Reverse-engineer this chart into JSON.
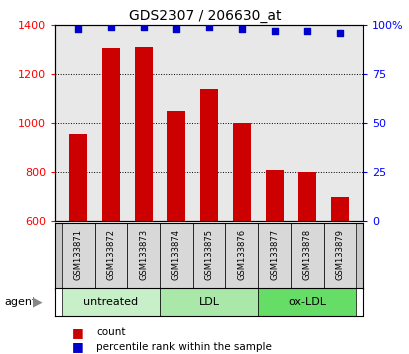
{
  "title": "GDS2307 / 206630_at",
  "samples": [
    "GSM133871",
    "GSM133872",
    "GSM133873",
    "GSM133874",
    "GSM133875",
    "GSM133876",
    "GSM133877",
    "GSM133878",
    "GSM133879"
  ],
  "counts": [
    955,
    1305,
    1310,
    1050,
    1140,
    1000,
    810,
    800,
    700
  ],
  "percentiles": [
    98,
    99,
    99,
    98,
    99,
    98,
    97,
    97,
    96
  ],
  "groups": [
    {
      "label": "untreated",
      "start": 0,
      "end": 3,
      "color": "#c8f0c8"
    },
    {
      "label": "LDL",
      "start": 3,
      "end": 6,
      "color": "#aae8aa"
    },
    {
      "label": "ox-LDL",
      "start": 6,
      "end": 9,
      "color": "#66dd66"
    }
  ],
  "ylim_left": [
    600,
    1400
  ],
  "ylim_right": [
    0,
    100
  ],
  "yticks_left": [
    600,
    800,
    1000,
    1200,
    1400
  ],
  "yticks_right": [
    0,
    25,
    50,
    75,
    100
  ],
  "bar_color": "#cc0000",
  "dot_color": "#0000cc",
  "bar_width": 0.55,
  "grid_color": "#000000",
  "plot_bg_color": "#e8e8e8",
  "sample_box_color": "#d8d8d8",
  "agent_label": "agent",
  "left_label_color": "red",
  "right_label_color": "blue",
  "title_fontsize": 10,
  "tick_fontsize": 8,
  "sample_fontsize": 6,
  "group_fontsize": 8,
  "legend_fontsize": 7.5
}
